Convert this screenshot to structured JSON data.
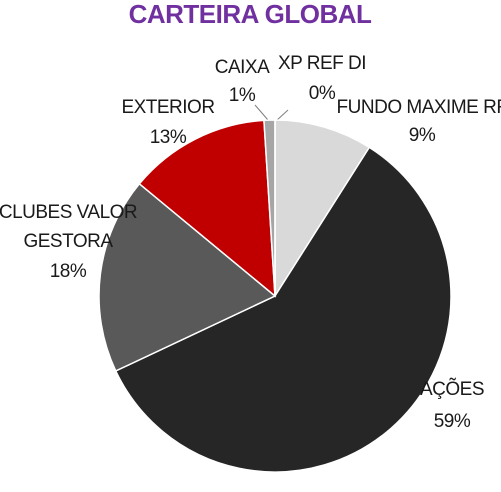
{
  "chart_data": {
    "type": "pie",
    "title": "CARTEIRA GLOBAL",
    "categories": [
      "FUNDO MAXIME RF",
      "AÇÕES",
      "CLUBES VALOR GESTORA",
      "EXTERIOR",
      "CAIXA",
      "XP REF DI"
    ],
    "values": [
      9,
      59,
      18,
      13,
      1,
      0
    ],
    "value_labels": [
      "9%",
      "59%",
      "18%",
      "13%",
      "1%",
      "0%"
    ],
    "colors": [
      "#d9d9d9",
      "#262626",
      "#595959",
      "#c00000",
      "#a6a6a6",
      "#7f7f7f"
    ]
  }
}
